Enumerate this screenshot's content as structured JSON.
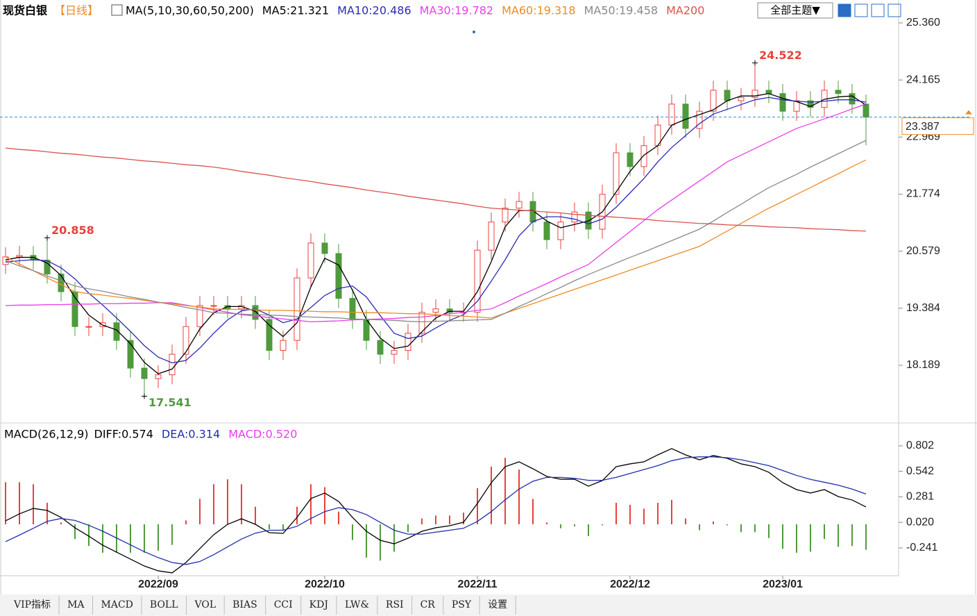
{
  "header": {
    "button": "全部主题▼"
  },
  "tabs": [
    "VIP指标",
    "MA",
    "MACD",
    "BOLL",
    "VOL",
    "BIAS",
    "CCI",
    "KDJ",
    "LW&",
    "RSI",
    "CR",
    "PSY",
    "设置"
  ],
  "chart_data": [
    {
      "type": "candlestick",
      "title": "现货白银",
      "subtitle": "【日线】",
      "indicator": "MA(5,10,30,60,50,200)",
      "open": [
        20.3,
        20.46,
        20.49,
        20.39,
        20.1,
        19.73,
        19.0,
        19.0,
        19.08,
        18.71,
        18.13,
        17.91,
        17.99,
        18.42,
        19.0,
        19.44,
        19.44,
        19.37,
        19.44,
        19.15,
        18.5,
        18.71,
        20.02,
        20.75,
        20.53,
        19.59,
        19.15,
        18.71,
        18.42,
        18.5,
        18.86,
        19.3,
        19.37,
        19.3,
        19.3,
        20.6,
        21.19,
        21.48,
        21.62,
        21.19,
        20.82,
        21.19,
        21.4,
        21.04,
        21.77,
        22.64,
        22.35,
        22.79,
        23.22,
        23.66,
        23.15,
        23.51,
        23.95,
        23.73,
        23.8,
        23.95,
        23.88,
        23.51,
        23.73,
        23.59,
        23.95,
        23.88,
        23.66
      ],
      "high": [
        20.66,
        20.69,
        20.69,
        20.858,
        20.3,
        19.93,
        19.2,
        19.28,
        19.28,
        18.91,
        18.33,
        18.19,
        18.62,
        19.2,
        19.64,
        19.64,
        19.64,
        19.64,
        19.64,
        19.35,
        18.91,
        20.22,
        20.95,
        20.95,
        20.73,
        19.79,
        19.35,
        18.91,
        18.7,
        19.06,
        19.5,
        19.57,
        19.57,
        19.5,
        20.8,
        21.39,
        21.68,
        21.82,
        21.82,
        21.39,
        21.39,
        21.6,
        21.6,
        21.97,
        22.84,
        22.84,
        22.99,
        23.42,
        23.86,
        23.86,
        23.71,
        24.15,
        24.15,
        24.0,
        24.522,
        24.15,
        24.08,
        23.93,
        23.93,
        24.15,
        24.15,
        24.08,
        23.86
      ],
      "low": [
        20.1,
        20.26,
        20.19,
        19.9,
        19.53,
        18.8,
        18.8,
        18.8,
        18.51,
        17.93,
        17.541,
        17.71,
        17.79,
        18.22,
        18.8,
        19.24,
        19.17,
        19.17,
        18.95,
        18.3,
        18.3,
        18.51,
        19.82,
        20.33,
        19.39,
        18.95,
        18.51,
        18.22,
        18.22,
        18.3,
        18.66,
        19.1,
        19.1,
        19.1,
        19.1,
        20.4,
        20.99,
        21.28,
        20.99,
        20.62,
        20.62,
        20.99,
        20.84,
        20.84,
        21.57,
        22.15,
        22.15,
        22.59,
        23.02,
        22.95,
        22.95,
        23.31,
        23.53,
        23.53,
        23.6,
        23.68,
        23.31,
        23.31,
        23.39,
        23.39,
        23.68,
        23.46,
        22.8
      ],
      "close": [
        20.46,
        20.49,
        20.39,
        20.1,
        19.73,
        19.0,
        19.0,
        19.08,
        18.71,
        18.13,
        17.91,
        17.99,
        18.42,
        19.0,
        19.44,
        19.44,
        19.37,
        19.44,
        19.15,
        18.5,
        18.71,
        20.02,
        20.75,
        20.53,
        19.59,
        19.15,
        18.71,
        18.42,
        18.5,
        18.86,
        19.3,
        19.37,
        19.3,
        19.3,
        20.6,
        21.19,
        21.48,
        21.62,
        21.19,
        20.82,
        21.19,
        21.4,
        21.04,
        21.77,
        22.64,
        22.35,
        22.79,
        23.22,
        23.66,
        23.15,
        23.51,
        23.95,
        23.73,
        23.8,
        23.95,
        23.88,
        23.51,
        23.73,
        23.59,
        23.95,
        23.88,
        23.66,
        23.387
      ],
      "up_color": "#e8413c",
      "down_color": "#4f9a3c",
      "series": [
        {
          "name": "MA5:21.321",
          "color": "#000000",
          "values": [
            20.4,
            20.45,
            20.45,
            20.33,
            20.07,
            19.61,
            19.24,
            19.03,
            18.93,
            18.64,
            18.25,
            18.01,
            18.11,
            18.47,
            18.95,
            19.29,
            19.42,
            19.42,
            19.32,
            19.03,
            18.79,
            19.08,
            19.83,
            20.43,
            20.29,
            19.76,
            19.15,
            18.76,
            18.54,
            18.59,
            18.89,
            19.18,
            19.32,
            19.32,
            19.73,
            20.36,
            21.09,
            21.43,
            21.43,
            21.21,
            21.07,
            21.14,
            21.21,
            21.4,
            21.82,
            22.25,
            22.59,
            22.79,
            23.22,
            23.34,
            23.44,
            23.54,
            23.73,
            23.83,
            23.83,
            23.88,
            23.78,
            23.71,
            23.61,
            23.76,
            23.81,
            23.83,
            23.64
          ]
        },
        {
          "name": "MA10:20.486",
          "color": "#2a2ab8",
          "values": [
            20.35,
            20.38,
            20.4,
            20.38,
            20.23,
            20.0,
            19.7,
            19.45,
            19.18,
            18.9,
            18.6,
            18.36,
            18.24,
            18.29,
            18.55,
            18.86,
            19.14,
            19.33,
            19.37,
            19.24,
            19.08,
            19.16,
            19.4,
            19.65,
            19.8,
            19.85,
            19.62,
            19.23,
            18.86,
            18.75,
            18.8,
            18.97,
            19.13,
            19.25,
            19.53,
            19.95,
            20.4,
            20.9,
            21.2,
            21.3,
            21.3,
            21.25,
            21.15,
            21.25,
            21.5,
            21.8,
            22.1,
            22.45,
            22.75,
            23.0,
            23.25,
            23.45,
            23.55,
            23.65,
            23.75,
            23.8,
            23.75,
            23.72,
            23.7,
            23.72,
            23.75,
            23.75,
            23.7
          ]
        },
        {
          "name": "MA30:19.782",
          "color": "#e83ee8",
          "values": [
            19.44,
            19.45,
            19.45,
            19.46,
            19.46,
            19.47,
            19.47,
            19.48,
            19.48,
            19.49,
            19.49,
            19.5,
            19.5,
            19.45,
            19.4,
            19.35,
            19.3,
            19.25,
            19.22,
            19.19,
            19.16,
            19.13,
            19.1,
            19.11,
            19.12,
            19.14,
            19.15,
            19.16,
            19.17,
            19.19,
            19.2,
            19.23,
            19.27,
            19.3,
            19.34,
            19.37,
            19.5,
            19.64,
            19.77,
            19.9,
            20.04,
            20.17,
            20.3,
            20.53,
            20.76,
            20.99,
            21.22,
            21.45,
            21.65,
            21.85,
            22.05,
            22.25,
            22.45,
            22.59,
            22.73,
            22.87,
            23.01,
            23.15,
            23.25,
            23.35,
            23.45,
            23.56,
            23.66
          ]
        },
        {
          "name": "MA60:19.318",
          "color": "#f08a24",
          "values": [
            20.46,
            20.31,
            20.17,
            20.02,
            19.88,
            19.73,
            19.69,
            19.66,
            19.62,
            19.59,
            19.55,
            19.51,
            19.48,
            19.44,
            19.41,
            19.37,
            19.36,
            19.36,
            19.35,
            19.34,
            19.34,
            19.33,
            19.32,
            19.31,
            19.31,
            19.3,
            19.29,
            19.29,
            19.28,
            19.27,
            19.27,
            19.25,
            19.23,
            19.22,
            19.2,
            19.18,
            19.28,
            19.38,
            19.48,
            19.58,
            19.68,
            19.78,
            19.88,
            19.98,
            20.08,
            20.18,
            20.28,
            20.38,
            20.48,
            20.58,
            20.68,
            20.84,
            21.0,
            21.16,
            21.32,
            21.48,
            21.62,
            21.77,
            21.91,
            22.06,
            22.2,
            22.35,
            22.49
          ]
        },
        {
          "name": "MA50:19.458",
          "color": "#8a8a8a",
          "values": [
            20.38,
            20.27,
            20.17,
            20.06,
            19.96,
            19.85,
            19.79,
            19.74,
            19.68,
            19.62,
            19.57,
            19.51,
            19.46,
            19.4,
            19.35,
            19.29,
            19.28,
            19.26,
            19.25,
            19.24,
            19.23,
            19.21,
            19.2,
            19.19,
            19.18,
            19.16,
            19.15,
            19.14,
            19.13,
            19.11,
            19.1,
            19.11,
            19.12,
            19.13,
            19.14,
            19.15,
            19.28,
            19.42,
            19.55,
            19.69,
            19.82,
            19.96,
            20.09,
            20.21,
            20.33,
            20.45,
            20.56,
            20.68,
            20.8,
            20.92,
            21.04,
            21.21,
            21.39,
            21.56,
            21.74,
            21.91,
            22.05,
            22.19,
            22.34,
            22.48,
            22.62,
            22.76,
            22.9
          ]
        },
        {
          "name": "MA200",
          "color": "#d9534f",
          "values": [
            22.74,
            22.71,
            22.69,
            22.66,
            22.63,
            22.61,
            22.58,
            22.55,
            22.53,
            22.5,
            22.47,
            22.45,
            22.42,
            22.39,
            22.37,
            22.34,
            22.3,
            22.25,
            22.21,
            22.17,
            22.12,
            22.08,
            22.04,
            21.99,
            21.95,
            21.91,
            21.86,
            21.82,
            21.78,
            21.73,
            21.69,
            21.65,
            21.61,
            21.57,
            21.52,
            21.48,
            21.46,
            21.44,
            21.42,
            21.4,
            21.38,
            21.35,
            21.33,
            21.31,
            21.29,
            21.27,
            21.25,
            21.22,
            21.2,
            21.18,
            21.16,
            21.15,
            21.13,
            21.12,
            21.11,
            21.09,
            21.08,
            21.07,
            21.05,
            21.04,
            21.03,
            21.01,
            21.0
          ]
        }
      ],
      "ylim": [
        16.996,
        25.84
      ],
      "yticks": [
        18.189,
        19.384,
        20.579,
        21.774,
        22.969,
        24.165,
        {
          "value": 25.36,
          "label": "25.360"
        }
      ],
      "annotations": [
        24.522,
        20.858,
        17.541
      ],
      "last_price": 23.387,
      "last_color": "#f08a24"
    },
    {
      "type": "macd",
      "title": "MACD(26,12,9)",
      "categories": [
        null,
        null,
        null,
        null,
        null,
        null,
        null,
        null,
        null,
        null,
        null,
        "2022/09",
        null,
        null,
        null,
        null,
        null,
        null,
        null,
        null,
        null,
        null,
        null,
        "2022/10",
        null,
        null,
        null,
        null,
        null,
        null,
        null,
        null,
        null,
        null,
        "2022/11",
        null,
        null,
        null,
        null,
        null,
        null,
        null,
        null,
        null,
        null,
        "2022/12",
        null,
        null,
        null,
        null,
        null,
        null,
        null,
        null,
        null,
        null,
        "2023/01",
        null,
        null,
        null,
        null,
        null,
        null
      ],
      "series": [
        {
          "name": "DIFF:0.574",
          "color": "#000000",
          "values": [
            0.036,
            0.107,
            0.163,
            0.142,
            0.071,
            -0.035,
            -0.121,
            -0.213,
            -0.284,
            -0.355,
            -0.426,
            -0.475,
            -0.496,
            -0.39,
            -0.248,
            -0.106,
            0.0,
            0.057,
            0.0,
            -0.085,
            -0.092,
            0.071,
            0.263,
            0.32,
            0.234,
            0.071,
            -0.071,
            -0.163,
            -0.199,
            -0.142,
            -0.071,
            -0.035,
            -0.014,
            0.021,
            0.213,
            0.426,
            0.589,
            0.639,
            0.568,
            0.49,
            0.461,
            0.461,
            0.39,
            0.447,
            0.589,
            0.618,
            0.639,
            0.71,
            0.774,
            0.71,
            0.66,
            0.703,
            0.674,
            0.618,
            0.589,
            0.532,
            0.426,
            0.355,
            0.32,
            0.355,
            0.284,
            0.249,
            0.178
          ]
        },
        {
          "name": "DEA:0.314",
          "color": "#1f2fa8",
          "values": [
            -0.177,
            -0.11,
            -0.04,
            0.03,
            0.06,
            0.04,
            -0.01,
            -0.07,
            -0.14,
            -0.21,
            -0.28,
            -0.34,
            -0.39,
            -0.41,
            -0.38,
            -0.31,
            -0.23,
            -0.15,
            -0.09,
            -0.06,
            -0.06,
            -0.02,
            0.06,
            0.13,
            0.17,
            0.15,
            0.1,
            0.02,
            -0.06,
            -0.1,
            -0.1,
            -0.08,
            -0.06,
            -0.04,
            0.03,
            0.13,
            0.25,
            0.36,
            0.44,
            0.48,
            0.48,
            0.47,
            0.45,
            0.45,
            0.48,
            0.52,
            0.56,
            0.6,
            0.65,
            0.68,
            0.69,
            0.69,
            0.68,
            0.66,
            0.63,
            0.6,
            0.55,
            0.5,
            0.46,
            0.43,
            0.4,
            0.36,
            0.31
          ]
        }
      ],
      "histogram": {
        "name": "MACD:0.520",
        "color": "#e83ee8",
        "values": [
          0.43,
          0.43,
          0.41,
          0.22,
          0.02,
          -0.15,
          -0.22,
          -0.29,
          -0.29,
          -0.29,
          -0.29,
          -0.27,
          -0.21,
          0.04,
          0.26,
          0.41,
          0.46,
          0.41,
          0.18,
          -0.05,
          -0.06,
          0.18,
          0.41,
          0.38,
          0.13,
          -0.16,
          -0.34,
          -0.37,
          -0.28,
          -0.08,
          0.06,
          0.09,
          0.09,
          0.12,
          0.37,
          0.59,
          0.68,
          0.56,
          0.26,
          0.02,
          -0.04,
          -0.02,
          -0.12,
          -0.01,
          0.22,
          0.2,
          0.16,
          0.22,
          0.25,
          0.06,
          -0.06,
          0.03,
          -0.01,
          -0.08,
          -0.08,
          -0.14,
          -0.25,
          -0.29,
          -0.28,
          -0.15,
          -0.23,
          -0.22,
          -0.26
        ]
      },
      "up_color": "#e8413c",
      "down_color": "#4f9a3c",
      "ylim": [
        -0.518,
        1.015
      ],
      "yticks": [
        -0.241,
        {
          "value": 0.02,
          "label": "0.020"
        },
        0.281,
        0.542,
        0.802
      ]
    }
  ]
}
